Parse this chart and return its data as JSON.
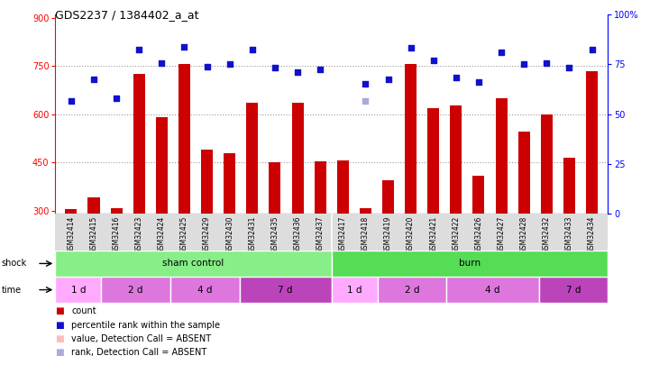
{
  "title": "GDS2237 / 1384402_a_at",
  "samples": [
    "GSM32414",
    "GSM32415",
    "GSM32416",
    "GSM32423",
    "GSM32424",
    "GSM32425",
    "GSM32429",
    "GSM32430",
    "GSM32431",
    "GSM32435",
    "GSM32436",
    "GSM32437",
    "GSM32417",
    "GSM32418",
    "GSM32419",
    "GSM32420",
    "GSM32421",
    "GSM32422",
    "GSM32426",
    "GSM32427",
    "GSM32428",
    "GSM32432",
    "GSM32433",
    "GSM32434"
  ],
  "bar_values": [
    305,
    340,
    308,
    725,
    590,
    755,
    490,
    480,
    635,
    450,
    635,
    453,
    455,
    307,
    395,
    755,
    620,
    628,
    408,
    650,
    545,
    600,
    465,
    735
  ],
  "dot_values": [
    640,
    710,
    650,
    800,
    758,
    810,
    748,
    755,
    800,
    745,
    730,
    740,
    null,
    695,
    710,
    808,
    768,
    715,
    700,
    793,
    755,
    758,
    745,
    802
  ],
  "absent_rank_indices": [
    13
  ],
  "absent_rank_values": [
    640
  ],
  "ylim_left": [
    290,
    910
  ],
  "ylim_right": [
    0,
    100
  ],
  "yticks_left": [
    300,
    450,
    600,
    750,
    900
  ],
  "yticks_right": [
    0,
    25,
    50,
    75,
    100
  ],
  "bar_color": "#cc0000",
  "dot_color": "#1111cc",
  "absent_bar_color": "#ffbbbb",
  "absent_rank_color": "#aaaadd",
  "bg_color": "#ffffff",
  "grid_lines": [
    450,
    600,
    750
  ],
  "shock_groups": [
    {
      "label": "sham control",
      "start": 0,
      "end": 12,
      "color": "#88ee88"
    },
    {
      "label": "burn",
      "start": 12,
      "end": 24,
      "color": "#55dd55"
    }
  ],
  "time_groups": [
    {
      "label": "1 d",
      "start": 0,
      "end": 2,
      "color": "#ffaaff"
    },
    {
      "label": "2 d",
      "start": 2,
      "end": 5,
      "color": "#dd77dd"
    },
    {
      "label": "4 d",
      "start": 5,
      "end": 8,
      "color": "#dd77dd"
    },
    {
      "label": "7 d",
      "start": 8,
      "end": 12,
      "color": "#bb44bb"
    },
    {
      "label": "1 d",
      "start": 12,
      "end": 14,
      "color": "#ffaaff"
    },
    {
      "label": "2 d",
      "start": 14,
      "end": 17,
      "color": "#dd77dd"
    },
    {
      "label": "4 d",
      "start": 17,
      "end": 21,
      "color": "#dd77dd"
    },
    {
      "label": "7 d",
      "start": 21,
      "end": 24,
      "color": "#bb44bb"
    }
  ],
  "legend_items": [
    {
      "color": "#cc0000",
      "label": "count"
    },
    {
      "color": "#1111cc",
      "label": "percentile rank within the sample"
    },
    {
      "color": "#ffbbbb",
      "label": "value, Detection Call = ABSENT"
    },
    {
      "color": "#aaaadd",
      "label": "rank, Detection Call = ABSENT"
    }
  ]
}
